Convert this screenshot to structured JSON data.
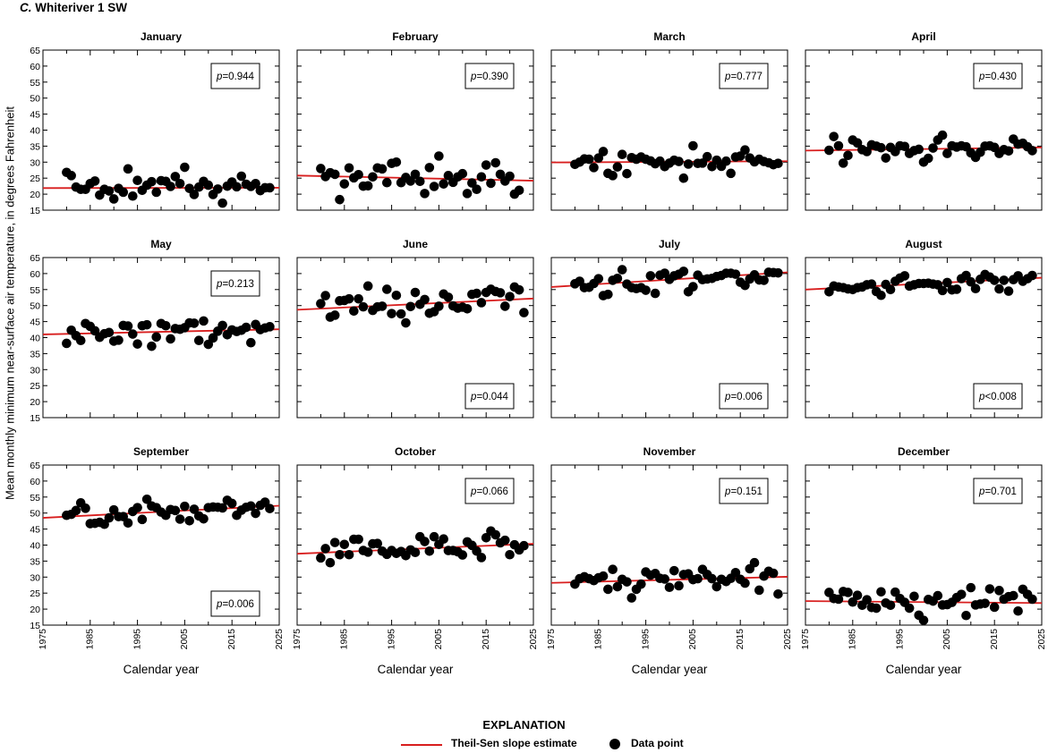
{
  "figure": {
    "panel_letter": "C.",
    "site_name": "Whiteriver 1 SW",
    "ylabel": "Mean monthly minimum near-surface air temperature, in degrees Fahrenheit",
    "xlabel": "Calendar year",
    "xticks": [
      1975,
      1985,
      1995,
      2005,
      2015,
      2025
    ],
    "yticks": [
      15,
      20,
      25,
      30,
      35,
      40,
      45,
      50,
      55,
      60,
      65
    ],
    "xlim": [
      1975,
      2025
    ],
    "ylim": [
      15,
      65
    ]
  },
  "colors": {
    "trend": "#d81e1e",
    "points": "#000000",
    "axes": "#000000"
  },
  "legend": {
    "title": "EXPLANATION",
    "line_label": "Theil-Sen slope estimate",
    "point_label": "Data point"
  },
  "chart_data": [
    {
      "type": "scatter",
      "title": "January",
      "p_label": "p",
      "p_value": "=0.944",
      "p_position": "top-right",
      "x": [
        1980,
        1981,
        1982,
        1983,
        1984,
        1985,
        1986,
        1987,
        1988,
        1989,
        1990,
        1991,
        1992,
        1993,
        1994,
        1995,
        1996,
        1997,
        1998,
        1999,
        2000,
        2001,
        2002,
        2003,
        2004,
        2005,
        2006,
        2007,
        2008,
        2009,
        2010,
        2011,
        2012,
        2013,
        2014,
        2015,
        2016,
        2017,
        2018,
        2019,
        2020,
        2021,
        2022,
        2023
      ],
      "y": [
        26.8,
        25.8,
        22.2,
        21.5,
        21.5,
        23.3,
        24.1,
        19.7,
        21.5,
        21.0,
        18.5,
        21.8,
        20.6,
        27.9,
        19.4,
        24.3,
        21.2,
        22.8,
        23.9,
        20.6,
        24.2,
        24.0,
        22.4,
        25.5,
        23.3,
        28.4,
        21.8,
        19.9,
        22.2,
        24.0,
        22.8,
        19.9,
        21.6,
        17.2,
        22.5,
        23.8,
        22.3,
        25.6,
        23.1,
        22.4,
        23.3,
        21.1,
        22.0,
        22.0
      ],
      "trend": [
        [
          1975,
          21.9
        ],
        [
          2025,
          22.0
        ]
      ]
    },
    {
      "type": "scatter",
      "title": "February",
      "p_label": "p",
      "p_value": "=0.390",
      "p_position": "top-right",
      "x": [
        1980,
        1981,
        1982,
        1983,
        1984,
        1985,
        1986,
        1987,
        1988,
        1989,
        1990,
        1991,
        1992,
        1993,
        1994,
        1995,
        1996,
        1997,
        1998,
        1999,
        2000,
        2001,
        2002,
        2003,
        2004,
        2005,
        2006,
        2007,
        2008,
        2009,
        2010,
        2011,
        2012,
        2013,
        2014,
        2015,
        2016,
        2017,
        2018,
        2019,
        2020,
        2021,
        2022
      ],
      "y": [
        28.0,
        25.5,
        26.7,
        26.2,
        18.3,
        23.2,
        28.2,
        25.1,
        26.1,
        22.5,
        22.6,
        25.4,
        28.2,
        27.9,
        23.6,
        29.6,
        30.0,
        23.6,
        25.2,
        24.1,
        26.2,
        24.0,
        20.2,
        28.3,
        22.4,
        31.9,
        23.2,
        25.8,
        23.7,
        25.4,
        26.4,
        20.2,
        23.5,
        21.5,
        25.4,
        29.1,
        23.4,
        29.8,
        26.2,
        24.1,
        25.6,
        20.0,
        21.2
      ],
      "trend": [
        [
          1975,
          25.8
        ],
        [
          2025,
          24.2
        ]
      ]
    },
    {
      "type": "scatter",
      "title": "March",
      "p_label": "p",
      "p_value": "=0.777",
      "p_position": "top-right",
      "x": [
        1980,
        1981,
        1982,
        1983,
        1984,
        1985,
        1986,
        1987,
        1988,
        1989,
        1990,
        1991,
        1992,
        1993,
        1994,
        1995,
        1996,
        1997,
        1998,
        1999,
        2000,
        2001,
        2002,
        2003,
        2004,
        2005,
        2006,
        2007,
        2008,
        2009,
        2010,
        2011,
        2012,
        2013,
        2014,
        2015,
        2016,
        2017,
        2018,
        2019,
        2020,
        2021,
        2022,
        2023
      ],
      "y": [
        29.3,
        30.0,
        31.0,
        30.9,
        28.3,
        31.3,
        33.3,
        26.5,
        25.8,
        28.5,
        32.4,
        26.4,
        31.4,
        30.9,
        31.6,
        30.9,
        30.4,
        29.5,
        30.3,
        28.6,
        29.7,
        30.6,
        30.2,
        25.0,
        29.4,
        35.1,
        29.6,
        29.7,
        31.7,
        28.6,
        30.6,
        28.7,
        30.3,
        26.5,
        31.6,
        31.9,
        33.8,
        31.3,
        30.1,
        30.9,
        30.2,
        29.8,
        29.2,
        29.6
      ],
      "trend": [
        [
          1975,
          29.9
        ],
        [
          2025,
          30.3
        ]
      ]
    },
    {
      "type": "scatter",
      "title": "April",
      "p_label": "p",
      "p_value": "=0.430",
      "p_position": "top-right",
      "x": [
        1980,
        1981,
        1982,
        1983,
        1984,
        1985,
        1986,
        1987,
        1988,
        1989,
        1990,
        1991,
        1992,
        1993,
        1994,
        1995,
        1996,
        1997,
        1998,
        1999,
        2000,
        2001,
        2002,
        2003,
        2004,
        2005,
        2006,
        2007,
        2008,
        2009,
        2010,
        2011,
        2012,
        2013,
        2014,
        2015,
        2016,
        2017,
        2018,
        2019,
        2020,
        2021,
        2022,
        2023
      ],
      "y": [
        33.7,
        38.0,
        35.1,
        29.7,
        32.1,
        36.9,
        36.0,
        33.9,
        33.3,
        35.4,
        35.0,
        34.5,
        31.3,
        34.6,
        33.3,
        35.1,
        34.9,
        32.7,
        33.6,
        34.0,
        30.0,
        31.2,
        34.4,
        36.9,
        38.4,
        32.7,
        35.1,
        34.7,
        35.1,
        34.8,
        32.9,
        31.5,
        33.1,
        35.0,
        35.1,
        34.6,
        32.7,
        33.9,
        33.5,
        37.2,
        35.6,
        35.9,
        34.8,
        33.6
      ],
      "trend": [
        [
          1975,
          33.6
        ],
        [
          2025,
          34.6
        ]
      ]
    },
    {
      "type": "scatter",
      "title": "May",
      "p_label": "p",
      "p_value": "=0.213",
      "p_position": "top-right",
      "x": [
        1980,
        1981,
        1982,
        1983,
        1984,
        1985,
        1986,
        1987,
        1988,
        1989,
        1990,
        1991,
        1992,
        1993,
        1994,
        1995,
        1996,
        1997,
        1998,
        1999,
        2000,
        2001,
        2002,
        2003,
        2004,
        2005,
        2006,
        2007,
        2008,
        2009,
        2010,
        2011,
        2012,
        2013,
        2014,
        2015,
        2016,
        2017,
        2018,
        2019,
        2020,
        2021,
        2022,
        2023
      ],
      "y": [
        38.2,
        42.3,
        40.6,
        39.1,
        44.4,
        43.5,
        42.1,
        40.1,
        41.2,
        41.6,
        38.9,
        39.2,
        43.8,
        43.6,
        41.1,
        38.0,
        43.7,
        44.0,
        37.3,
        40.2,
        44.4,
        43.7,
        39.6,
        42.8,
        42.6,
        43.1,
        44.6,
        44.5,
        39.1,
        45.2,
        37.9,
        39.9,
        42.0,
        43.8,
        40.9,
        42.4,
        41.9,
        42.3,
        43.2,
        38.4,
        44.1,
        42.5,
        43.0,
        43.4
      ],
      "trend": [
        [
          1975,
          41.0
        ],
        [
          2025,
          42.6
        ]
      ]
    },
    {
      "type": "scatter",
      "title": "June",
      "p_label": "p",
      "p_value": "=0.044",
      "p_position": "bottom-right",
      "x": [
        1980,
        1981,
        1982,
        1983,
        1984,
        1985,
        1986,
        1987,
        1988,
        1989,
        1990,
        1991,
        1992,
        1993,
        1994,
        1995,
        1996,
        1997,
        1998,
        1999,
        2000,
        2001,
        2002,
        2003,
        2004,
        2005,
        2006,
        2007,
        2008,
        2009,
        2010,
        2011,
        2012,
        2013,
        2014,
        2015,
        2016,
        2017,
        2018,
        2019,
        2020,
        2021,
        2022,
        2023
      ],
      "y": [
        50.6,
        53.1,
        46.4,
        47.0,
        51.5,
        51.6,
        52.1,
        48.3,
        52.1,
        49.6,
        56.1,
        48.5,
        49.6,
        49.8,
        55.1,
        47.5,
        53.2,
        47.4,
        44.6,
        49.7,
        54.1,
        50.4,
        51.9,
        47.6,
        48.1,
        49.8,
        53.6,
        52.6,
        49.9,
        49.2,
        49.5,
        49.0,
        53.5,
        53.8,
        50.9,
        54.1,
        55.1,
        54.4,
        54.0,
        49.8,
        52.8,
        55.8,
        54.9,
        47.8
      ],
      "trend": [
        [
          1975,
          48.7
        ],
        [
          2025,
          52.2
        ]
      ]
    },
    {
      "type": "scatter",
      "title": "July",
      "p_label": "p",
      "p_value": "=0.006",
      "p_position": "bottom-right",
      "x": [
        1980,
        1981,
        1982,
        1983,
        1984,
        1985,
        1986,
        1987,
        1988,
        1989,
        1990,
        1991,
        1992,
        1993,
        1994,
        1995,
        1996,
        1997,
        1998,
        1999,
        2000,
        2001,
        2002,
        2003,
        2004,
        2005,
        2006,
        2007,
        2008,
        2009,
        2010,
        2011,
        2012,
        2013,
        2014,
        2015,
        2016,
        2017,
        2018,
        2019,
        2020,
        2021,
        2022,
        2023
      ],
      "y": [
        56.8,
        57.6,
        55.6,
        55.7,
        56.9,
        58.4,
        53.1,
        53.5,
        57.9,
        58.5,
        61.2,
        56.7,
        55.6,
        55.3,
        55.6,
        54.8,
        59.3,
        53.8,
        59.5,
        60.1,
        58.2,
        59.3,
        59.8,
        60.7,
        54.3,
        55.9,
        59.5,
        58.1,
        58.3,
        58.5,
        59.1,
        59.4,
        60.1,
        60.1,
        59.8,
        57.3,
        56.3,
        58.3,
        59.6,
        58.0,
        57.9,
        60.4,
        60.3,
        60.2
      ],
      "trend": [
        [
          1975,
          55.8
        ],
        [
          2025,
          60.4
        ]
      ]
    },
    {
      "type": "scatter",
      "title": "August",
      "p_label": "p",
      "p_value": "<0.008",
      "p_position": "bottom-right",
      "x": [
        1980,
        1981,
        1982,
        1983,
        1984,
        1985,
        1986,
        1987,
        1988,
        1989,
        1990,
        1991,
        1992,
        1993,
        1994,
        1995,
        1996,
        1997,
        1998,
        1999,
        2000,
        2001,
        2002,
        2003,
        2004,
        2005,
        2006,
        2007,
        2008,
        2009,
        2010,
        2011,
        2012,
        2013,
        2014,
        2015,
        2016,
        2017,
        2018,
        2019,
        2020,
        2021,
        2022,
        2023
      ],
      "y": [
        54.3,
        56.1,
        55.8,
        55.6,
        55.2,
        55.0,
        55.6,
        55.8,
        56.5,
        56.7,
        54.4,
        53.2,
        56.6,
        55.0,
        57.6,
        58.6,
        59.3,
        56.1,
        56.5,
        56.9,
        56.9,
        57.0,
        56.7,
        56.5,
        54.7,
        57.2,
        54.9,
        55.1,
        58.4,
        59.4,
        57.4,
        55.3,
        58.2,
        59.7,
        58.9,
        57.9,
        55.2,
        57.9,
        54.5,
        58.1,
        59.3,
        57.6,
        58.4,
        59.4
      ],
      "trend": [
        [
          1975,
          55.0
        ],
        [
          2025,
          58.7
        ]
      ]
    },
    {
      "type": "scatter",
      "title": "September",
      "p_label": "p",
      "p_value": "=0.006",
      "p_position": "bottom-right",
      "x": [
        1980,
        1981,
        1982,
        1983,
        1984,
        1985,
        1986,
        1987,
        1988,
        1989,
        1990,
        1991,
        1992,
        1993,
        1994,
        1995,
        1996,
        1997,
        1998,
        1999,
        2000,
        2001,
        2002,
        2003,
        2004,
        2005,
        2006,
        2007,
        2008,
        2009,
        2010,
        2011,
        2012,
        2013,
        2014,
        2015,
        2016,
        2017,
        2018,
        2019,
        2020,
        2021,
        2022,
        2023
      ],
      "y": [
        49.3,
        49.6,
        50.8,
        53.2,
        51.5,
        46.7,
        46.8,
        47.1,
        46.5,
        48.5,
        51.0,
        48.9,
        48.9,
        46.9,
        50.5,
        51.7,
        48.0,
        54.3,
        52.2,
        51.7,
        50.3,
        49.3,
        51.1,
        50.8,
        48.1,
        52.1,
        47.6,
        51.2,
        49.1,
        48.2,
        51.7,
        51.9,
        51.8,
        51.6,
        54.0,
        53.0,
        49.3,
        50.9,
        51.8,
        52.2,
        49.9,
        52.4,
        53.4,
        51.4
      ],
      "trend": [
        [
          1975,
          48.5
        ],
        [
          2025,
          52.3
        ]
      ]
    },
    {
      "type": "scatter",
      "title": "October",
      "p_label": "p",
      "p_value": "=0.066",
      "p_position": "top-right",
      "x": [
        1980,
        1981,
        1982,
        1983,
        1984,
        1985,
        1986,
        1987,
        1988,
        1989,
        1990,
        1991,
        1992,
        1993,
        1994,
        1995,
        1996,
        1997,
        1998,
        1999,
        2000,
        2001,
        2002,
        2003,
        2004,
        2005,
        2006,
        2007,
        2008,
        2009,
        2010,
        2011,
        2012,
        2013,
        2014,
        2015,
        2016,
        2017,
        2018,
        2019,
        2020,
        2021,
        2022,
        2023
      ],
      "y": [
        36.0,
        38.9,
        34.5,
        40.8,
        37.0,
        40.2,
        37.0,
        41.8,
        41.8,
        38.3,
        37.8,
        40.4,
        40.5,
        38.1,
        37.1,
        38.3,
        37.4,
        38.0,
        36.7,
        38.5,
        37.7,
        42.6,
        41.1,
        38.1,
        42.6,
        40.2,
        41.9,
        38.3,
        38.3,
        37.9,
        36.9,
        41.0,
        39.9,
        38.1,
        36.1,
        42.3,
        44.4,
        43.2,
        40.7,
        41.5,
        37.0,
        40.1,
        38.5,
        39.8
      ],
      "trend": [
        [
          1975,
          37.3
        ],
        [
          2025,
          40.4
        ]
      ]
    },
    {
      "type": "scatter",
      "title": "November",
      "p_label": "p",
      "p_value": "=0.151",
      "p_position": "top-right",
      "x": [
        1980,
        1981,
        1982,
        1983,
        1984,
        1985,
        1986,
        1987,
        1988,
        1989,
        1990,
        1991,
        1992,
        1993,
        1994,
        1995,
        1996,
        1997,
        1998,
        1999,
        2000,
        2001,
        2002,
        2003,
        2004,
        2005,
        2006,
        2007,
        2008,
        2009,
        2010,
        2011,
        2012,
        2013,
        2014,
        2015,
        2016,
        2017,
        2018,
        2019,
        2020,
        2021,
        2022,
        2023
      ],
      "y": [
        27.8,
        29.5,
        30.1,
        29.5,
        28.9,
        29.8,
        30.3,
        26.2,
        32.4,
        27.0,
        29.3,
        28.5,
        23.5,
        26.2,
        27.8,
        31.6,
        30.6,
        31.1,
        29.6,
        29.4,
        26.8,
        32.0,
        27.3,
        30.8,
        31.0,
        29.2,
        29.5,
        32.4,
        30.8,
        29.5,
        27.0,
        29.3,
        28.6,
        29.6,
        31.4,
        29.3,
        28.1,
        32.6,
        34.5,
        25.9,
        30.3,
        31.8,
        31.2,
        24.7
      ],
      "trend": [
        [
          1975,
          28.2
        ],
        [
          2025,
          30.1
        ]
      ]
    },
    {
      "type": "scatter",
      "title": "December",
      "p_label": "p",
      "p_value": "=0.701",
      "p_position": "top-right",
      "x": [
        1980,
        1981,
        1982,
        1983,
        1984,
        1985,
        1986,
        1987,
        1988,
        1989,
        1990,
        1991,
        1992,
        1993,
        1994,
        1995,
        1996,
        1997,
        1998,
        1999,
        2000,
        2001,
        2002,
        2003,
        2004,
        2005,
        2006,
        2007,
        2008,
        2009,
        2010,
        2011,
        2012,
        2013,
        2014,
        2015,
        2016,
        2017,
        2018,
        2019,
        2020,
        2021,
        2022,
        2023
      ],
      "y": [
        25.2,
        23.3,
        23.1,
        25.5,
        25.2,
        22.2,
        24.3,
        21.2,
        22.9,
        20.5,
        20.3,
        25.4,
        21.9,
        21.2,
        25.3,
        23.3,
        22.1,
        20.3,
        24.0,
        18.1,
        16.5,
        23.0,
        22.5,
        24.2,
        21.3,
        21.4,
        22.1,
        23.6,
        24.6,
        18.0,
        26.7,
        21.3,
        21.6,
        21.8,
        26.3,
        20.6,
        25.8,
        23.1,
        23.9,
        24.2,
        19.4,
        26.2,
        24.6,
        23.1
      ],
      "trend": [
        [
          1975,
          22.5
        ],
        [
          2025,
          21.9
        ]
      ]
    }
  ]
}
